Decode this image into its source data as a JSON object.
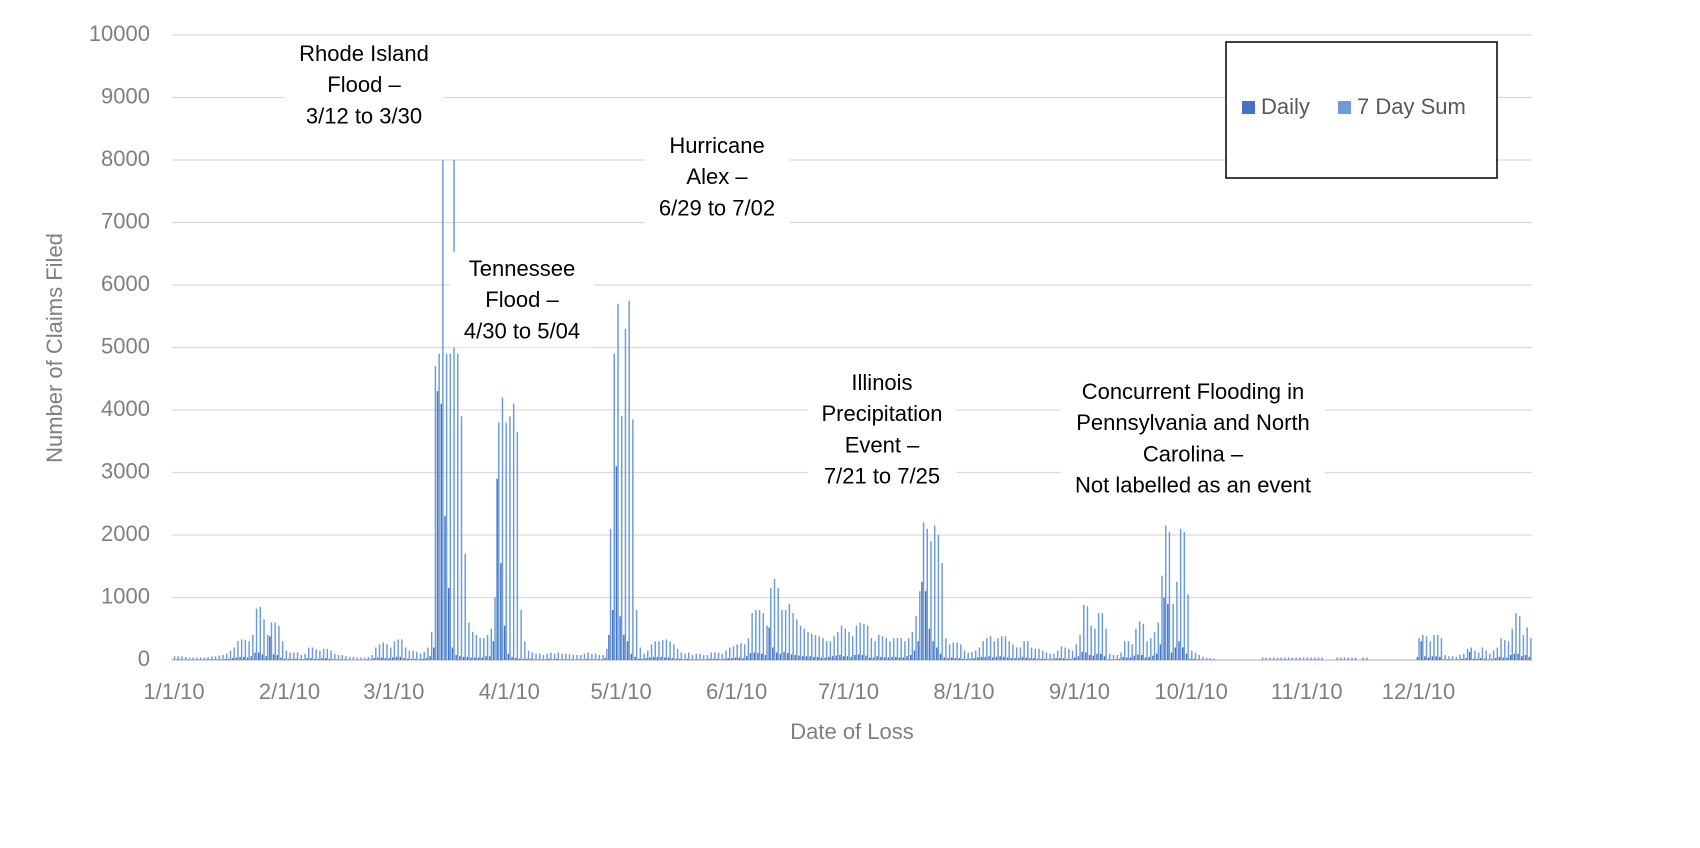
{
  "chart_data": {
    "type": "bar",
    "ylabel": "Number of Claims Filed",
    "xlabel": "Date of Loss",
    "ylim": [
      0,
      10000
    ],
    "yticks": [
      0,
      1000,
      2000,
      3000,
      4000,
      5000,
      6000,
      7000,
      8000,
      9000,
      10000
    ],
    "grid": true,
    "legend": "top-right",
    "categories": [
      "1/1/10",
      null,
      null,
      null,
      null,
      null,
      null,
      null,
      null,
      null,
      null,
      null,
      null,
      null,
      null,
      null,
      null,
      null,
      null,
      null,
      null,
      null,
      null,
      null,
      null,
      null,
      null,
      null,
      null,
      null,
      null,
      "2/1/10",
      null,
      null,
      null,
      null,
      null,
      null,
      null,
      null,
      null,
      null,
      null,
      null,
      null,
      null,
      null,
      null,
      null,
      null,
      null,
      null,
      null,
      null,
      null,
      null,
      null,
      null,
      null,
      "3/1/10",
      null,
      null,
      null,
      null,
      null,
      null,
      null,
      null,
      null,
      null,
      null,
      null,
      null,
      null,
      null,
      null,
      null,
      null,
      null,
      null,
      null,
      null,
      null,
      null,
      null,
      null,
      null,
      null,
      null,
      null,
      "4/1/10",
      null,
      null,
      null,
      null,
      null,
      null,
      null,
      null,
      null,
      null,
      null,
      null,
      null,
      null,
      null,
      null,
      null,
      null,
      null,
      null,
      null,
      null,
      null,
      null,
      null,
      null,
      null,
      null,
      null,
      "5/1/10",
      null,
      null,
      null,
      null,
      null,
      null,
      null,
      null,
      null,
      null,
      null,
      null,
      null,
      null,
      null,
      null,
      null,
      null,
      null,
      null,
      null,
      null,
      null,
      null,
      null,
      null,
      null,
      null,
      null,
      null,
      "6/1/10",
      null,
      null,
      null,
      null,
      null,
      null,
      null,
      null,
      null,
      null,
      null,
      null,
      null,
      null,
      null,
      null,
      null,
      null,
      null,
      null,
      null,
      null,
      null,
      null,
      null,
      null,
      null,
      null,
      null,
      "7/1/10",
      null,
      null,
      null,
      null,
      null,
      null,
      null,
      null,
      null,
      null,
      null,
      null,
      null,
      null,
      null,
      null,
      null,
      null,
      null,
      null,
      null,
      null,
      null,
      null,
      null,
      null,
      null,
      null,
      null,
      null,
      "8/1/10",
      null,
      null,
      null,
      null,
      null,
      null,
      null,
      null,
      null,
      null,
      null,
      null,
      null,
      null,
      null,
      null,
      null,
      null,
      null,
      null,
      null,
      null,
      null,
      null,
      null,
      null,
      null,
      null,
      null,
      null,
      "9/1/10",
      null,
      null,
      null,
      null,
      null,
      null,
      null,
      null,
      null,
      null,
      null,
      null,
      null,
      null,
      null,
      null,
      null,
      null,
      null,
      null,
      null,
      null,
      null,
      null,
      null,
      null,
      null,
      null,
      null,
      "10/1/10",
      null,
      null,
      null,
      null,
      null,
      null,
      null,
      null,
      null,
      null,
      null,
      null,
      null,
      null,
      null,
      null,
      null,
      null,
      null,
      null,
      null,
      null,
      null,
      null,
      null,
      null,
      null,
      null,
      null,
      null,
      "11/1/10",
      null,
      null,
      null,
      null,
      null,
      null,
      null,
      null,
      null,
      null,
      null,
      null,
      null,
      null,
      null,
      null,
      null,
      null,
      null,
      null,
      null,
      null,
      null,
      null,
      null,
      null,
      null,
      null,
      null,
      "12/1/10",
      null,
      null,
      null,
      null,
      null,
      null,
      null,
      null,
      null,
      null,
      null,
      null,
      null,
      null,
      null,
      null,
      null,
      null,
      null,
      null,
      null,
      null,
      null,
      null,
      null,
      null,
      null,
      null,
      null,
      null
    ],
    "series": [
      {
        "name": "Daily",
        "color": "#4472c4",
        "values": [
          10,
          10,
          10,
          5,
          5,
          5,
          5,
          5,
          5,
          10,
          10,
          10,
          10,
          10,
          15,
          20,
          30,
          40,
          50,
          50,
          40,
          60,
          120,
          120,
          90,
          60,
          380,
          90,
          80,
          40,
          20,
          20,
          20,
          20,
          10,
          10,
          30,
          30,
          20,
          20,
          30,
          30,
          20,
          10,
          10,
          10,
          10,
          5,
          5,
          5,
          5,
          5,
          10,
          10,
          30,
          40,
          40,
          30,
          30,
          40,
          50,
          50,
          30,
          20,
          20,
          20,
          10,
          20,
          30,
          60,
          200,
          4300,
          4100,
          2300,
          1150,
          200,
          80,
          60,
          50,
          50,
          40,
          40,
          40,
          40,
          60,
          60,
          300,
          2900,
          1550,
          550,
          100,
          50,
          30,
          20,
          20,
          20,
          20,
          10,
          10,
          10,
          10,
          20,
          10,
          20,
          10,
          10,
          10,
          10,
          10,
          10,
          10,
          20,
          10,
          10,
          10,
          10,
          30,
          400,
          800,
          3100,
          700,
          400,
          300,
          100,
          50,
          20,
          20,
          30,
          40,
          50,
          50,
          50,
          40,
          40,
          30,
          20,
          20,
          10,
          20,
          10,
          10,
          10,
          10,
          10,
          20,
          20,
          20,
          10,
          20,
          30,
          30,
          40,
          40,
          30,
          60,
          110,
          120,
          110,
          100,
          80,
          520,
          200,
          120,
          100,
          130,
          110,
          90,
          80,
          70,
          60,
          60,
          60,
          50,
          50,
          40,
          40,
          50,
          60,
          70,
          80,
          60,
          60,
          50,
          80,
          90,
          80,
          70,
          40,
          40,
          60,
          50,
          40,
          40,
          50,
          50,
          40,
          40,
          60,
          80,
          150,
          300,
          1250,
          1100,
          500,
          300,
          200,
          100,
          40,
          30,
          40,
          30,
          30,
          20,
          20,
          20,
          30,
          40,
          50,
          50,
          60,
          40,
          50,
          60,
          50,
          40,
          30,
          30,
          30,
          50,
          40,
          30,
          30,
          20,
          20,
          20,
          10,
          20,
          30,
          30,
          30,
          20,
          20,
          40,
          60,
          130,
          120,
          80,
          70,
          100,
          100,
          60,
          10,
          10,
          10,
          20,
          50,
          40,
          40,
          70,
          90,
          80,
          40,
          50,
          70,
          100,
          250,
          1000,
          900,
          120,
          200,
          300,
          200,
          100,
          20,
          20,
          10,
          10,
          5,
          5,
          5,
          0,
          0,
          0,
          0,
          0,
          0,
          0,
          0,
          0,
          0,
          0,
          0,
          5,
          5,
          5,
          5,
          5,
          5,
          5,
          5,
          5,
          5,
          5,
          5,
          5,
          5,
          5,
          5,
          5,
          0,
          0,
          0,
          5,
          5,
          5,
          5,
          5,
          5,
          0,
          5,
          5,
          0,
          0,
          0,
          0,
          0,
          0,
          0,
          0,
          0,
          0,
          0,
          0,
          0,
          50,
          300,
          60,
          40,
          60,
          60,
          50,
          10,
          10,
          10,
          5,
          10,
          20,
          30,
          130,
          20,
          20,
          30,
          20,
          10,
          20,
          30,
          50,
          40,
          40,
          80,
          100,
          100,
          60,
          80,
          50
        ]
      },
      {
        "name": "7 Day Sum",
        "color": "#6b9bd8",
        "values": [
          60,
          60,
          60,
          50,
          40,
          40,
          40,
          40,
          40,
          50,
          60,
          60,
          70,
          80,
          100,
          150,
          200,
          300,
          330,
          320,
          300,
          400,
          820,
          850,
          650,
          400,
          600,
          600,
          550,
          300,
          150,
          120,
          120,
          120,
          80,
          100,
          200,
          200,
          170,
          150,
          180,
          180,
          150,
          100,
          80,
          80,
          60,
          50,
          50,
          40,
          40,
          40,
          50,
          80,
          200,
          250,
          280,
          250,
          200,
          300,
          330,
          330,
          200,
          150,
          150,
          130,
          100,
          130,
          200,
          450,
          4700,
          4900,
          8000,
          4900,
          4900,
          8000,
          4900,
          3900,
          1700,
          600,
          450,
          400,
          350,
          350,
          400,
          500,
          1000,
          3800,
          4200,
          3800,
          3900,
          4100,
          3650,
          800,
          300,
          150,
          120,
          100,
          100,
          80,
          100,
          120,
          100,
          120,
          100,
          100,
          90,
          80,
          80,
          80,
          100,
          120,
          100,
          100,
          80,
          80,
          180,
          2100,
          4900,
          5700,
          3900,
          5300,
          5750,
          3850,
          800,
          200,
          100,
          150,
          250,
          300,
          300,
          320,
          330,
          300,
          250,
          180,
          120,
          100,
          120,
          80,
          100,
          100,
          80,
          80,
          120,
          120,
          120,
          100,
          150,
          200,
          220,
          250,
          270,
          250,
          350,
          750,
          800,
          800,
          750,
          550,
          1150,
          1300,
          1150,
          800,
          800,
          900,
          750,
          650,
          550,
          500,
          450,
          420,
          400,
          380,
          350,
          300,
          300,
          380,
          450,
          550,
          500,
          450,
          380,
          550,
          600,
          580,
          550,
          350,
          300,
          400,
          380,
          350,
          300,
          350,
          350,
          350,
          300,
          350,
          450,
          700,
          1100,
          2200,
          2100,
          1900,
          2150,
          2000,
          1550,
          350,
          250,
          280,
          280,
          250,
          150,
          120,
          130,
          150,
          200,
          300,
          350,
          380,
          300,
          350,
          380,
          380,
          300,
          250,
          200,
          200,
          300,
          300,
          200,
          180,
          180,
          150,
          120,
          100,
          100,
          150,
          220,
          200,
          180,
          150,
          250,
          400,
          880,
          860,
          550,
          500,
          750,
          750,
          500,
          100,
          80,
          80,
          120,
          300,
          300,
          250,
          500,
          620,
          580,
          300,
          350,
          450,
          600,
          1350,
          2150,
          2050,
          900,
          1250,
          2100,
          2050,
          1050,
          150,
          120,
          80,
          50,
          30,
          30,
          20,
          0,
          0,
          0,
          0,
          0,
          0,
          0,
          0,
          0,
          0,
          0,
          0,
          40,
          40,
          40,
          40,
          40,
          40,
          40,
          40,
          40,
          40,
          40,
          40,
          40,
          40,
          40,
          40,
          40,
          0,
          0,
          0,
          40,
          40,
          40,
          40,
          40,
          40,
          0,
          40,
          40,
          0,
          0,
          0,
          0,
          0,
          0,
          0,
          0,
          0,
          0,
          0,
          0,
          0,
          350,
          400,
          380,
          300,
          400,
          400,
          350,
          80,
          60,
          60,
          50,
          80,
          100,
          180,
          200,
          150,
          120,
          200,
          150,
          100,
          150,
          200,
          350,
          320,
          300,
          500,
          750,
          700,
          400,
          520,
          350
        ]
      }
    ],
    "annotations": [
      {
        "lines": [
          "Rhode Island",
          "Flood –",
          "3/12 to 3/30"
        ]
      },
      {
        "lines": [
          "Hurricane",
          "Alex –",
          "6/29 to 7/02"
        ]
      },
      {
        "lines": [
          "Tennessee",
          "Flood –",
          "4/30 to 5/04"
        ]
      },
      {
        "lines": [
          "Illinois",
          "Precipitation",
          "Event –",
          "7/21 to 7/25"
        ]
      },
      {
        "lines": [
          "Concurrent Flooding in",
          "Pennsylvania and North",
          "Carolina –",
          "Not labelled as an event"
        ]
      }
    ]
  }
}
